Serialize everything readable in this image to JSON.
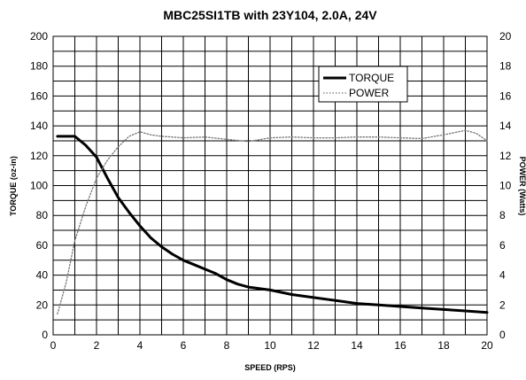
{
  "chart_data": {
    "type": "line",
    "title": "MBC25SI1TB with 23Y104, 2.0A, 24V",
    "xlabel": "SPEED (RPS)",
    "ylabel_left": "TORQUE (oz-in)",
    "ylabel_right": "POWER (Watts)",
    "xlim": [
      0,
      20
    ],
    "ylim_left": [
      0,
      200
    ],
    "ylim_right": [
      0,
      20
    ],
    "x_ticks": [
      "0",
      "2",
      "4",
      "6",
      "8",
      "10",
      "12",
      "14",
      "16",
      "18",
      "20"
    ],
    "y_left_ticks": [
      "0",
      "20",
      "40",
      "60",
      "80",
      "100",
      "120",
      "140",
      "160",
      "180",
      "200"
    ],
    "y_right_ticks": [
      "0",
      "2",
      "4",
      "6",
      "8",
      "10",
      "12",
      "14",
      "16",
      "18",
      "20"
    ],
    "x_grid_step": 1,
    "y_grid_step": 10,
    "grid": true,
    "legend": {
      "placement": "top-right"
    },
    "series": [
      {
        "name": "TORQUE",
        "axis": "left",
        "style": "solid",
        "color": "#000000",
        "points": [
          [
            0.2,
            133
          ],
          [
            1,
            133
          ],
          [
            1.5,
            127
          ],
          [
            2,
            119
          ],
          [
            2.5,
            105
          ],
          [
            3,
            92
          ],
          [
            3.5,
            82
          ],
          [
            4,
            73
          ],
          [
            4.5,
            65
          ],
          [
            5,
            59
          ],
          [
            5.5,
            54
          ],
          [
            6,
            50
          ],
          [
            6.5,
            47
          ],
          [
            7,
            44
          ],
          [
            7.5,
            41
          ],
          [
            8,
            37
          ],
          [
            8.5,
            34
          ],
          [
            9,
            32
          ],
          [
            10,
            30
          ],
          [
            11,
            27
          ],
          [
            12,
            25
          ],
          [
            13,
            23
          ],
          [
            14,
            21
          ],
          [
            15,
            20
          ],
          [
            16,
            19
          ],
          [
            17,
            18
          ],
          [
            18,
            17
          ],
          [
            19,
            16
          ],
          [
            20,
            15
          ]
        ]
      },
      {
        "name": "POWER",
        "axis": "right",
        "style": "dotted",
        "color": "#777777",
        "points": [
          [
            0.2,
            1.4
          ],
          [
            0.6,
            3.5
          ],
          [
            1,
            6.3
          ],
          [
            1.5,
            8.6
          ],
          [
            2,
            10.5
          ],
          [
            2.5,
            11.7
          ],
          [
            3,
            12.6
          ],
          [
            3.5,
            13.3
          ],
          [
            4,
            13.6
          ],
          [
            4.5,
            13.4
          ],
          [
            5,
            13.3
          ],
          [
            6,
            13.2
          ],
          [
            7,
            13.25
          ],
          [
            8,
            13.1
          ],
          [
            9,
            12.95
          ],
          [
            10,
            13.2
          ],
          [
            11,
            13.25
          ],
          [
            12,
            13.2
          ],
          [
            13,
            13.2
          ],
          [
            14,
            13.25
          ],
          [
            15,
            13.25
          ],
          [
            16,
            13.2
          ],
          [
            17,
            13.15
          ],
          [
            18,
            13.4
          ],
          [
            19,
            13.7
          ],
          [
            19.5,
            13.5
          ],
          [
            20,
            13.0
          ]
        ]
      }
    ]
  }
}
